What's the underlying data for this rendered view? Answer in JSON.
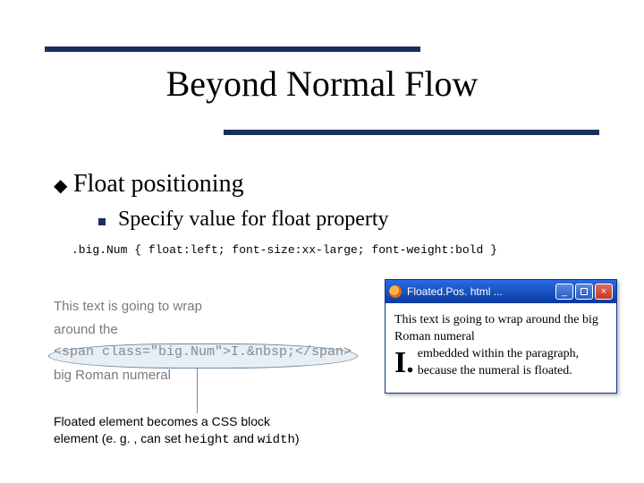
{
  "colors": {
    "rule": "#1a2f5a",
    "background": "#ffffff",
    "titlebar_gradient": [
      "#2a6be0",
      "#0a3aa0"
    ],
    "close_gradient": [
      "#e06a5a",
      "#c03a20"
    ],
    "source_text": "#7a7a7a",
    "callout_border": "#6e8aa6"
  },
  "title": "Beyond Normal Flow",
  "sub1": "Float positioning",
  "sub2": "Specify value for float property",
  "css_rule": ".big.Num { float:left; font-size:xx-large; font-weight:bold }",
  "source": {
    "line1": "This text is going to wrap",
    "line2": "around the",
    "line3": "<span class=\"big.Num\">I.&nbsp;</span>",
    "line4": "big Roman numeral"
  },
  "caption": {
    "t1": "Floated element becomes a CSS block",
    "t2a": "element (e. g. , can set ",
    "t2b": "height",
    "t2c": " and ",
    "t2d": "width",
    "t2e": ")"
  },
  "window": {
    "title": "Floated.Pos. html  ...",
    "buttons": {
      "min": "_",
      "close": "×"
    },
    "text_before": "This text is going to wrap around the big Roman numeral",
    "bigNum": "I.",
    "text_after": "embedded within the paragraph, because the numeral is floated."
  }
}
